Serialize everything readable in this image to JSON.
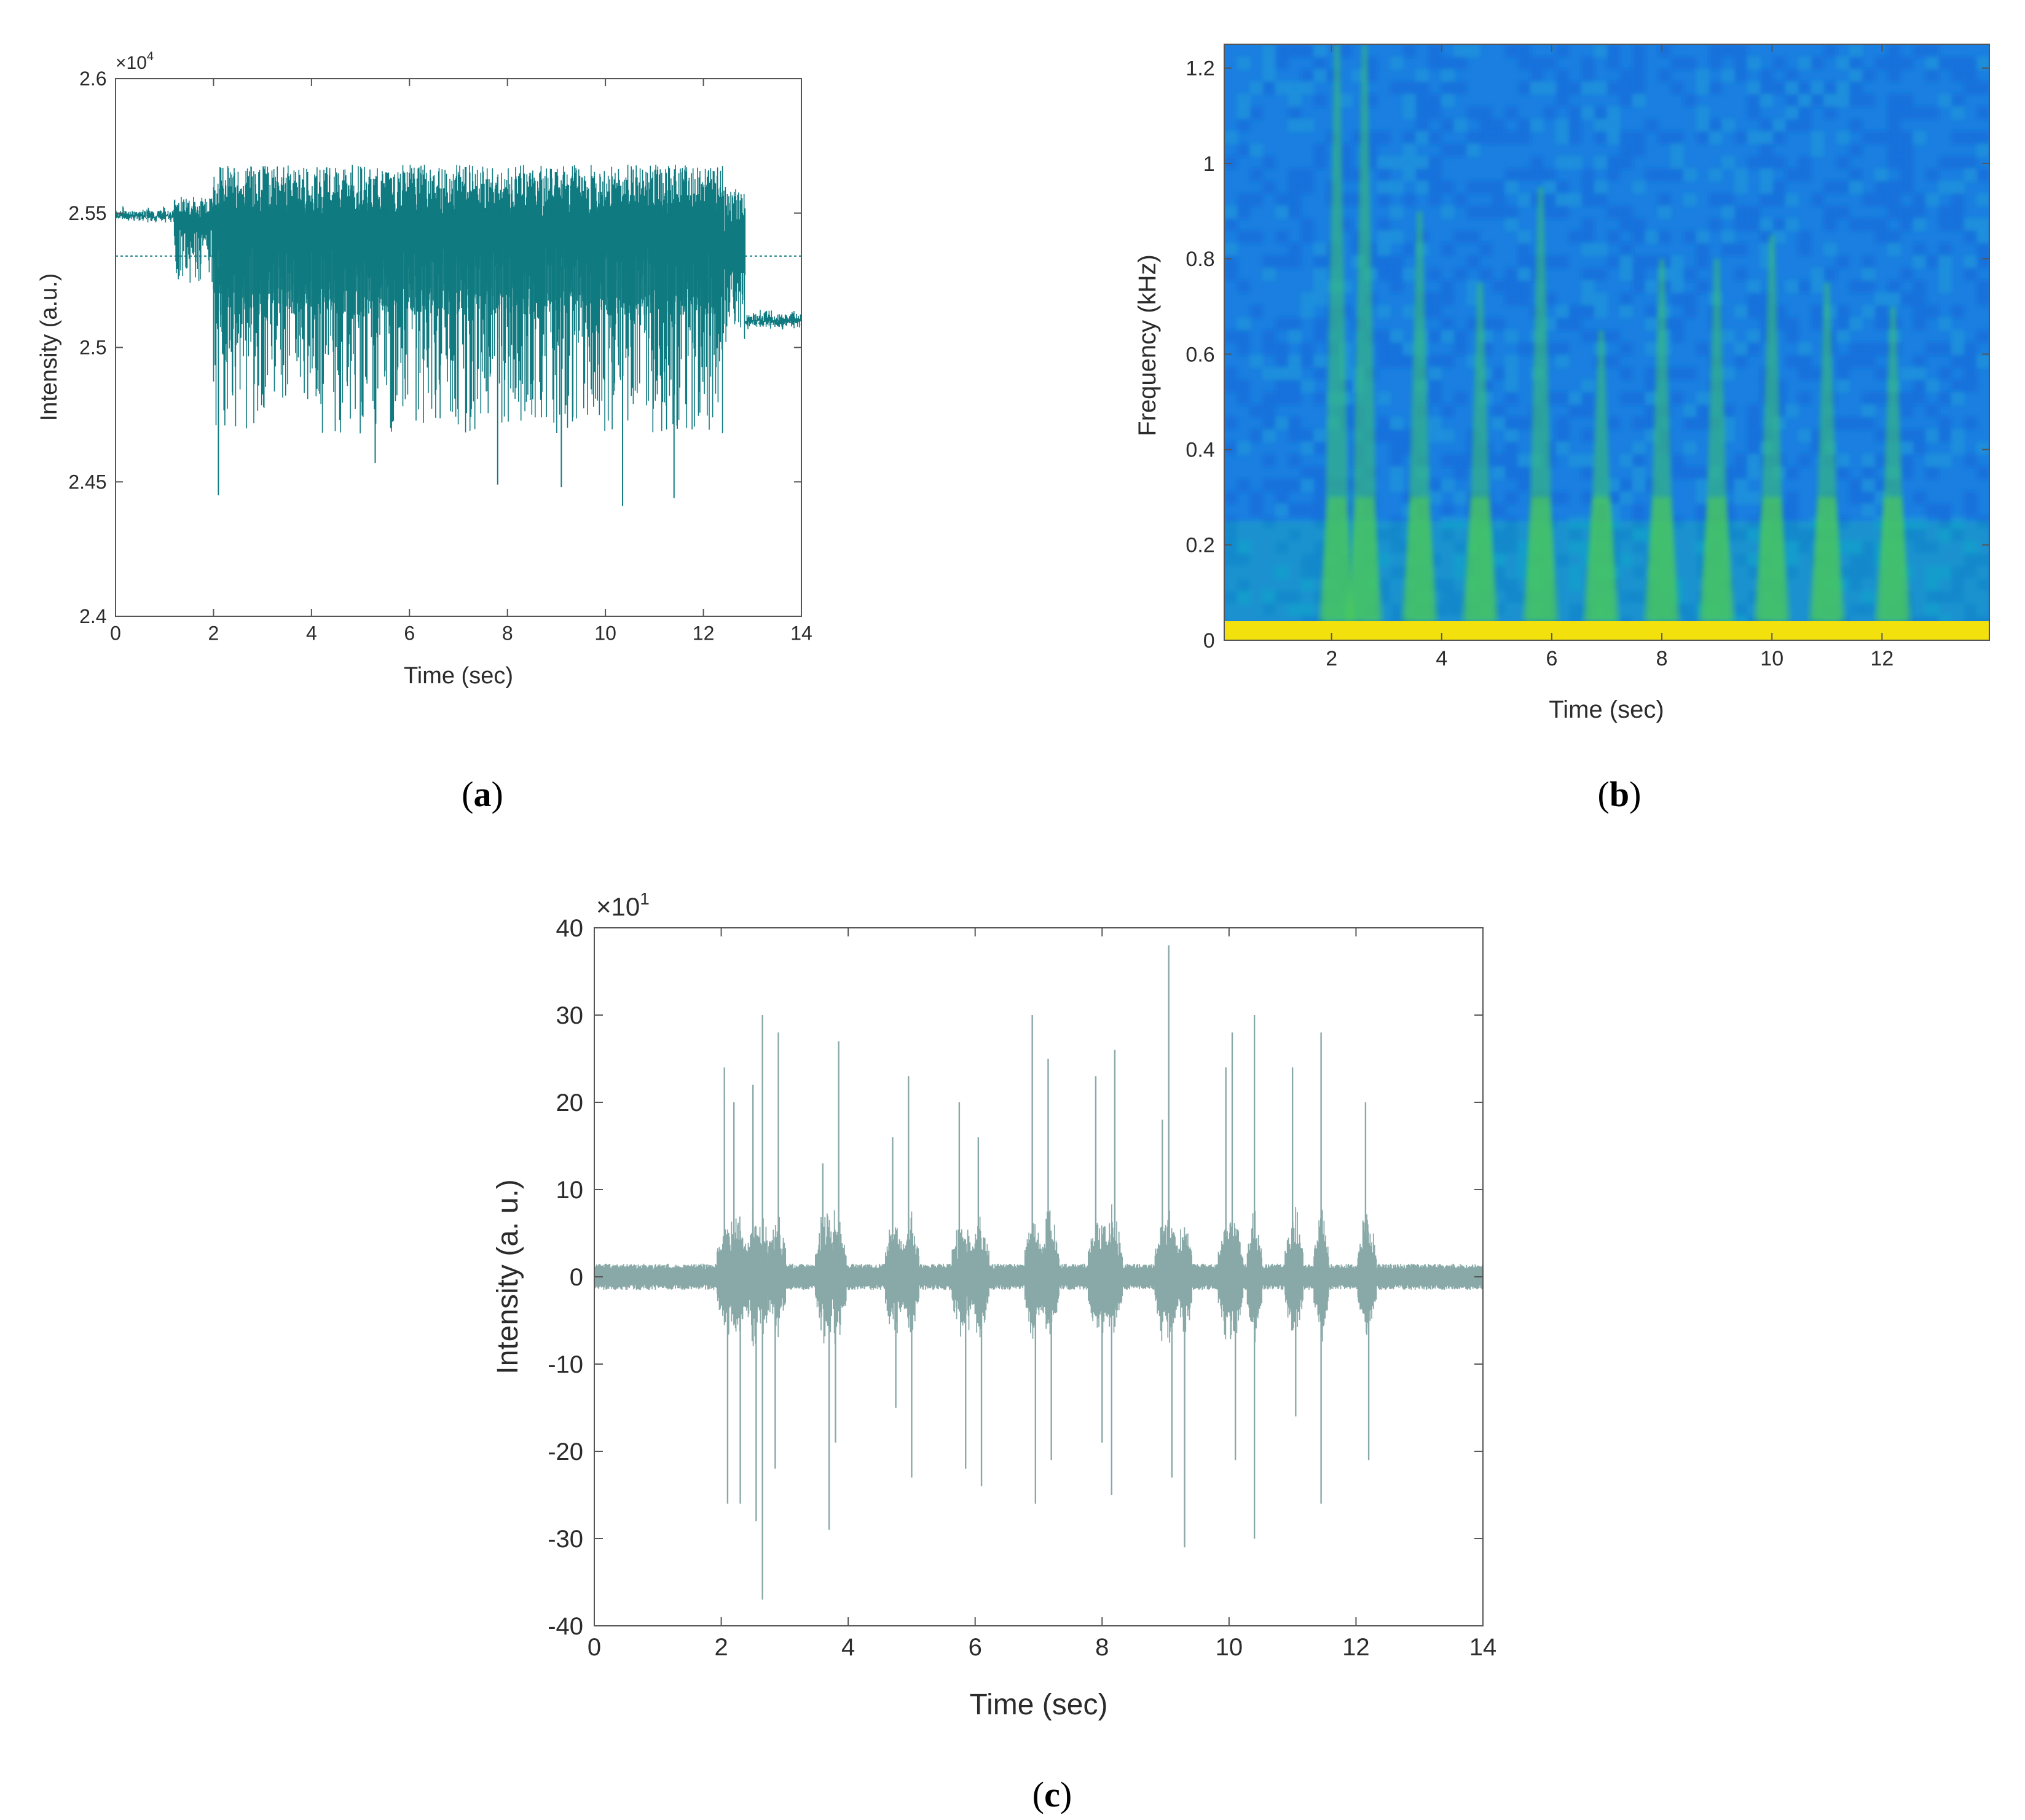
{
  "colors": {
    "signal_a": "#0f7a80",
    "signal_c": "#89a9a8",
    "axis": "#555555",
    "spec_bg": "#1a7fe0",
    "spec_mid": "#12b7b0",
    "spec_burst": "#3ec56a",
    "spec_band": "#f2e10c"
  },
  "chart_data": [
    {
      "type": "line",
      "panel_label": "a",
      "description": "acoustic intensity time series",
      "xlabel": "Time (sec)",
      "ylabel": "Intensity (a.u.)",
      "exponent_label": "×10",
      "exponent_sup": "4",
      "xlim": [
        0,
        14
      ],
      "ylim": [
        2.4,
        2.6
      ],
      "xticks": [
        0,
        2,
        4,
        6,
        8,
        10,
        12,
        14
      ],
      "xtick_labels": [
        "0",
        "2",
        "4",
        "6",
        "8",
        "10",
        "12",
        "14"
      ],
      "yticks": [
        2.4,
        2.45,
        2.5,
        2.55,
        2.6
      ],
      "ytick_labels": [
        "2.4",
        "2.45",
        "2.5",
        "2.55",
        "2.6"
      ],
      "reference_line_y": 2.534,
      "series": [
        {
          "segments": [
            {
              "t_start": 0,
              "t_end": 1.2,
              "center": 2.55,
              "spread_up": 0.003,
              "spread_down": 0.003
            },
            {
              "t_start": 1.2,
              "t_end": 2.0,
              "center": 2.544,
              "spread_up": 0.012,
              "spread_down": 0.02
            },
            {
              "t_start": 2.0,
              "t_end": 12.4,
              "center": 2.538,
              "spread_up": 0.03,
              "spread_down": 0.07
            },
            {
              "t_start": 12.4,
              "t_end": 12.85,
              "center": 2.53,
              "spread_up": 0.03,
              "spread_down": 0.03
            },
            {
              "t_start": 12.85,
              "t_end": 14,
              "center": 2.511,
              "spread_up": 0.004,
              "spread_down": 0.004
            }
          ],
          "min_peaks": [
            [
              2.1,
              2.445
            ],
            [
              5.3,
              2.457
            ],
            [
              7.8,
              2.449
            ],
            [
              9.1,
              2.448
            ],
            [
              10.35,
              2.441
            ],
            [
              11.4,
              2.444
            ]
          ]
        }
      ]
    },
    {
      "type": "heatmap",
      "panel_label": "b",
      "description": "spectrogram",
      "xlabel": "Time (sec)",
      "ylabel": "Frequency (kHz)",
      "xlim": [
        0.05,
        13.95
      ],
      "ylim": [
        0,
        1.25
      ],
      "xticks": [
        2,
        4,
        6,
        8,
        10,
        12
      ],
      "xtick_labels": [
        "2",
        "4",
        "6",
        "8",
        "10",
        "12"
      ],
      "yticks": [
        0,
        0.2,
        0.4,
        0.6,
        0.8,
        1,
        1.2
      ],
      "ytick_labels": [
        "0",
        "0.2",
        "0.4",
        "0.6",
        "0.8",
        "1",
        "1.2"
      ],
      "low_band_top_khz": 0.04,
      "burst_times": [
        2.1,
        2.6,
        3.6,
        4.7,
        5.8,
        6.9,
        8.0,
        9.0,
        10.0,
        11.0,
        12.2
      ],
      "burst_heights_khz": [
        1.25,
        1.25,
        0.9,
        0.75,
        0.95,
        0.65,
        0.8,
        0.8,
        0.85,
        0.75,
        0.7
      ]
    },
    {
      "type": "line",
      "panel_label": "c",
      "description": "filtered intensity time series",
      "xlabel": "Time (sec)",
      "ylabel": "Intensity (a. u.)",
      "exponent_label": "×10",
      "exponent_sup": "1",
      "xlim": [
        0,
        14
      ],
      "ylim": [
        -40,
        40
      ],
      "xticks": [
        0,
        2,
        4,
        6,
        8,
        10,
        12,
        14
      ],
      "xtick_labels": [
        "0",
        "2",
        "4",
        "6",
        "8",
        "10",
        "12",
        "14"
      ],
      "yticks": [
        -40,
        -30,
        -20,
        -10,
        0,
        10,
        20,
        30,
        40
      ],
      "ytick_labels": [
        "-40",
        "-30",
        "-20",
        "-10",
        "0",
        "10",
        "20",
        "30",
        "40"
      ],
      "series": [
        {
          "baseline_noise": 1.5,
          "spikes": [
            [
              2.05,
              24
            ],
            [
              2.1,
              -26
            ],
            [
              2.2,
              20
            ],
            [
              2.3,
              -26
            ],
            [
              2.5,
              22
            ],
            [
              2.55,
              -28
            ],
            [
              2.65,
              30
            ],
            [
              2.65,
              -37
            ],
            [
              2.9,
              28
            ],
            [
              2.85,
              -22
            ],
            [
              3.6,
              13
            ],
            [
              3.7,
              -29
            ],
            [
              3.85,
              27
            ],
            [
              3.8,
              -19
            ],
            [
              4.7,
              16
            ],
            [
              4.75,
              -15
            ],
            [
              4.95,
              23
            ],
            [
              5.0,
              -23
            ],
            [
              5.75,
              20
            ],
            [
              5.85,
              -22
            ],
            [
              6.05,
              16
            ],
            [
              6.1,
              -24
            ],
            [
              6.9,
              30
            ],
            [
              6.95,
              -26
            ],
            [
              7.15,
              25
            ],
            [
              7.2,
              -21
            ],
            [
              7.9,
              23
            ],
            [
              8.0,
              -19
            ],
            [
              8.2,
              26
            ],
            [
              8.15,
              -25
            ],
            [
              8.95,
              18
            ],
            [
              9.05,
              38
            ],
            [
              9.1,
              -23
            ],
            [
              9.3,
              -31
            ],
            [
              9.95,
              24
            ],
            [
              10.05,
              28
            ],
            [
              10.1,
              -21
            ],
            [
              10.4,
              30
            ],
            [
              10.4,
              -30
            ],
            [
              11.0,
              24
            ],
            [
              11.05,
              -16
            ],
            [
              11.45,
              28
            ],
            [
              11.45,
              -26
            ],
            [
              12.15,
              20
            ],
            [
              12.2,
              -21
            ]
          ]
        }
      ]
    }
  ]
}
